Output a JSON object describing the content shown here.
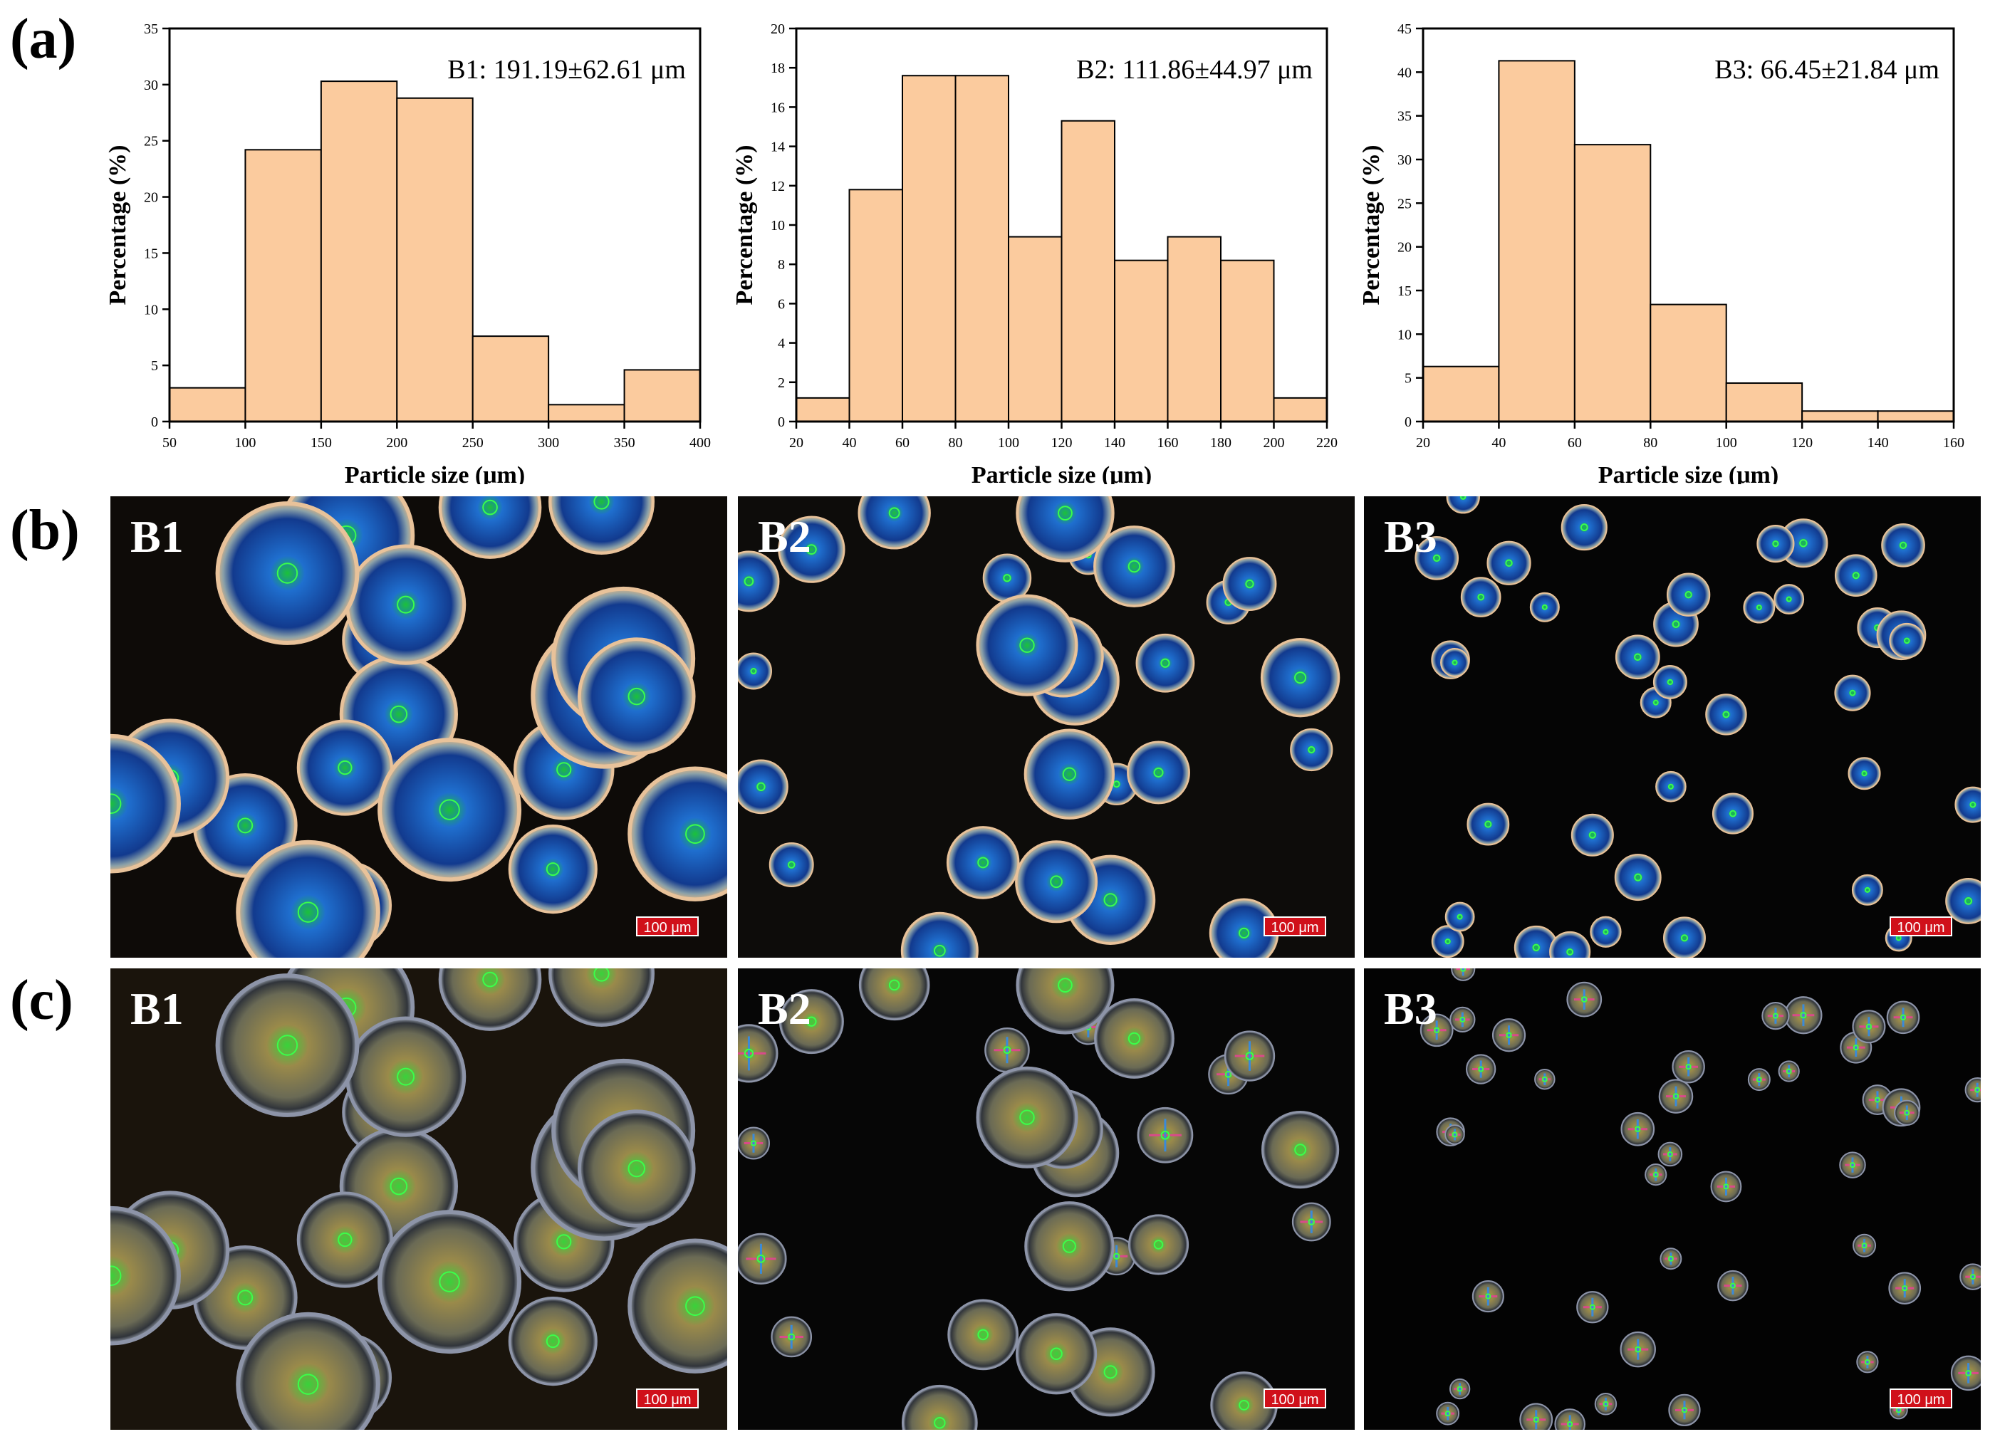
{
  "panels": {
    "a": "(a)",
    "b": "(b)",
    "c": "(c)"
  },
  "scale_bar": "100 μm",
  "sample_labels": [
    "B1",
    "B2",
    "B3"
  ],
  "chart_data": [
    {
      "type": "bar",
      "annotation": "B1: 191.19±62.61 μm",
      "xlabel": "Particle size (μm)",
      "ylabel": "Percentage (%)",
      "bins": [
        [
          50,
          100
        ],
        [
          100,
          150
        ],
        [
          150,
          200
        ],
        [
          200,
          250
        ],
        [
          250,
          300
        ],
        [
          300,
          350
        ],
        [
          350,
          400
        ]
      ],
      "values": [
        3.0,
        24.2,
        30.3,
        28.8,
        7.6,
        1.5,
        4.6
      ],
      "xlim": [
        50,
        400
      ],
      "ylim": [
        0,
        35
      ],
      "xticks": [
        50,
        100,
        150,
        200,
        250,
        300,
        350,
        400
      ],
      "yticks": [
        0,
        5,
        10,
        15,
        20,
        25,
        30,
        35
      ]
    },
    {
      "type": "bar",
      "annotation": "B2: 111.86±44.97 μm",
      "xlabel": "Particle size (μm)",
      "ylabel": "Percentage (%)",
      "bins": [
        [
          20,
          40
        ],
        [
          40,
          60
        ],
        [
          60,
          80
        ],
        [
          80,
          100
        ],
        [
          100,
          120
        ],
        [
          120,
          140
        ],
        [
          140,
          160
        ],
        [
          160,
          180
        ],
        [
          180,
          200
        ],
        [
          200,
          220
        ]
      ],
      "values": [
        1.2,
        11.8,
        17.6,
        17.6,
        9.4,
        15.3,
        8.2,
        9.4,
        8.2,
        1.2
      ],
      "xlim": [
        20,
        220
      ],
      "ylim": [
        0,
        20
      ],
      "xticks": [
        20,
        40,
        60,
        80,
        100,
        120,
        140,
        160,
        180,
        200,
        220
      ],
      "yticks": [
        0,
        2,
        4,
        6,
        8,
        10,
        12,
        14,
        16,
        18,
        20
      ]
    },
    {
      "type": "bar",
      "annotation": "B3: 66.45±21.84 μm",
      "xlabel": "Particle size (μm)",
      "ylabel": "Percentage (%)",
      "bins": [
        [
          20,
          40
        ],
        [
          40,
          60
        ],
        [
          60,
          80
        ],
        [
          80,
          100
        ],
        [
          100,
          120
        ],
        [
          120,
          140
        ],
        [
          140,
          160
        ]
      ],
      "values": [
        6.3,
        41.3,
        31.7,
        13.4,
        4.4,
        1.2,
        1.2
      ],
      "xlim": [
        20,
        160
      ],
      "ylim": [
        0,
        45
      ],
      "xticks": [
        20,
        40,
        60,
        80,
        100,
        120,
        140,
        160
      ],
      "yticks": [
        0,
        5,
        10,
        15,
        20,
        25,
        30,
        35,
        40,
        45
      ]
    }
  ]
}
